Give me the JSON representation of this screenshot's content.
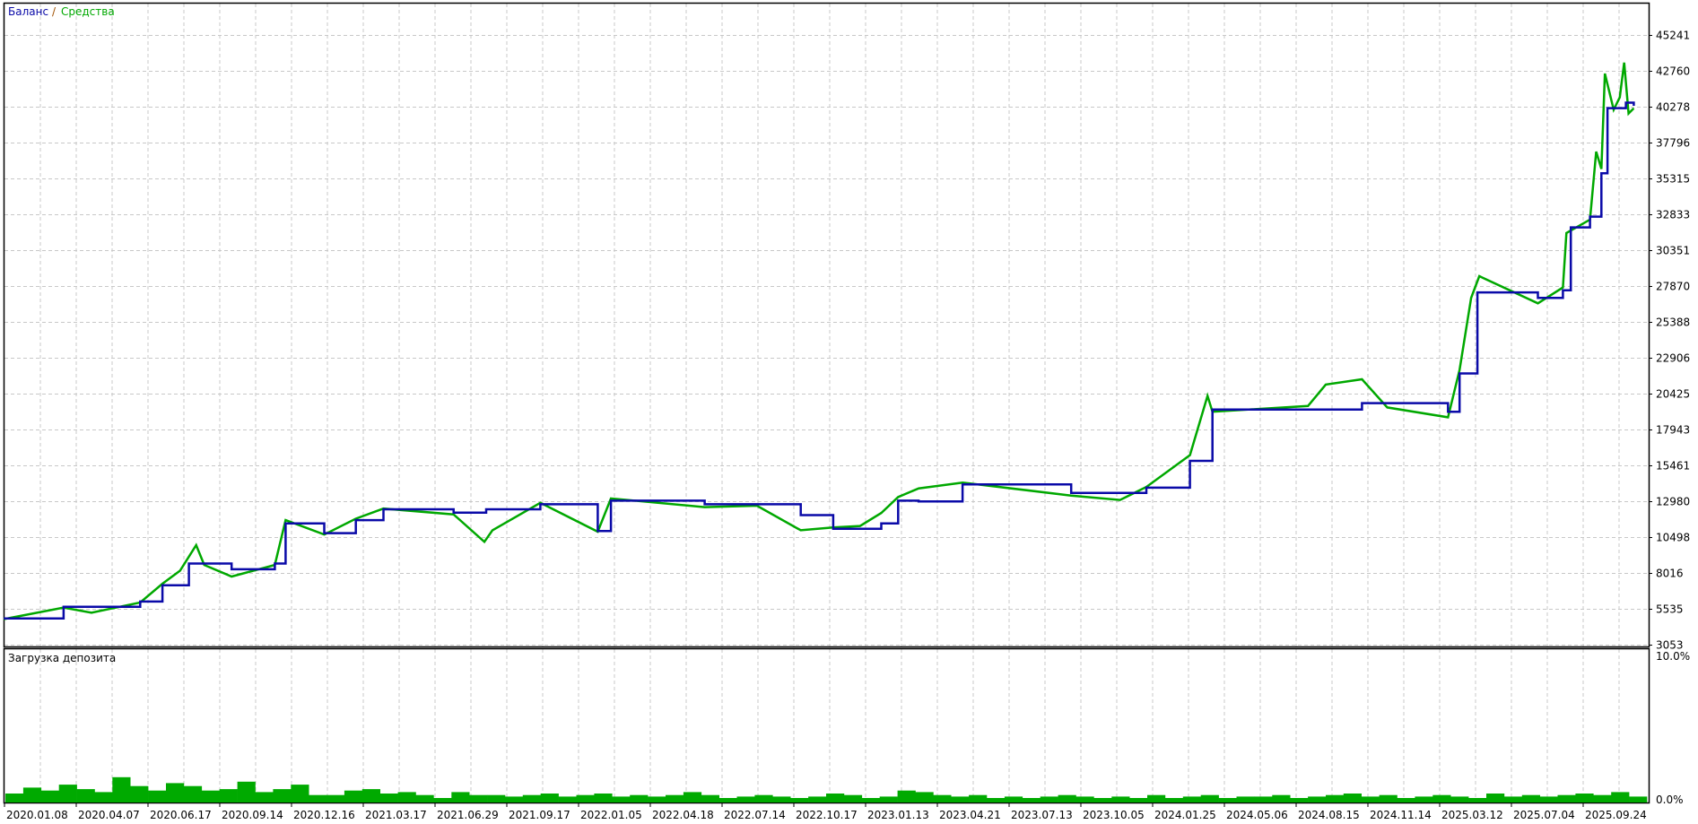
{
  "legend": {
    "balance": "Баланс",
    "separator": "/",
    "equity": "Средства"
  },
  "load_panel": {
    "title": "Загрузка депозита"
  },
  "colors": {
    "balance": "#0a0aa8",
    "equity": "#00a800",
    "load": "#00aa00",
    "grid": "#c8c8c8",
    "frame": "#000000"
  },
  "chart_data": [
    {
      "type": "line",
      "title": "",
      "legend": [
        "Баланс",
        "Средства"
      ],
      "legend_placement": "top-left",
      "grid": true,
      "y_ticks": [
        "45241",
        "42760",
        "40278",
        "37796",
        "35315",
        "32833",
        "30351",
        "27870",
        "25388",
        "22906",
        "20425",
        "17943",
        "15461",
        "12980",
        "10498",
        "8016",
        "5535",
        "3053"
      ],
      "ylim": [
        3053,
        47722
      ],
      "x_ticks": [
        "2020.01.08",
        "2020.04.07",
        "2020.06.17",
        "2020.09.14",
        "2020.12.16",
        "2021.03.17",
        "2021.06.29",
        "2021.09.17",
        "2022.01.05",
        "2022.04.18",
        "2022.07.14",
        "2022.10.17",
        "2023.01.13",
        "2023.04.21",
        "2023.07.13",
        "2023.10.05",
        "2024.01.25",
        "2024.05.06",
        "2024.08.15",
        "2024.11.14",
        "2025.03.12",
        "2025.07.04",
        "2025.09.24"
      ],
      "series": [
        {
          "name": "Баланс",
          "style": "step",
          "points": [
            [
              "2019.12.01",
              4900
            ],
            [
              "2020.02.14",
              5700
            ],
            [
              "2020.05.11",
              6070
            ],
            [
              "2020.06.02",
              7200
            ],
            [
              "2020.07.01",
              8700
            ],
            [
              "2020.08.23",
              8300
            ],
            [
              "2020.10.17",
              8700
            ],
            [
              "2020.10.31",
              11470
            ],
            [
              "2020.12.20",
              10800
            ],
            [
              "2021.01.29",
              11700
            ],
            [
              "2021.03.05",
              12450
            ],
            [
              "2021.06.13",
              12220
            ],
            [
              "2021.07.23",
              12450
            ],
            [
              "2021.09.23",
              12800
            ],
            [
              "2021.12.20",
              10950
            ],
            [
              "2022.01.09",
              13050
            ],
            [
              "2022.05.18",
              12800
            ],
            [
              "2022.07.21",
              12800
            ],
            [
              "2022.09.17",
              12050
            ],
            [
              "2022.10.29",
              11100
            ],
            [
              "2022.12.27",
              11470
            ],
            [
              "2023.01.17",
              13050
            ],
            [
              "2023.02.14",
              13000
            ],
            [
              "2023.04.15",
              14180
            ],
            [
              "2023.08.20",
              13580
            ],
            [
              "2023.11.30",
              13950
            ],
            [
              "2024.02.05",
              15800
            ],
            [
              "2024.03.08",
              19350
            ],
            [
              "2024.07.21",
              19350
            ],
            [
              "2024.09.30",
              19800
            ],
            [
              "2025.02.05",
              19200
            ],
            [
              "2025.02.24",
              21850
            ],
            [
              "2025.03.25",
              27460
            ],
            [
              "2025.06.29",
              27080
            ],
            [
              "2025.07.29",
              27600
            ],
            [
              "2025.08.07",
              31960
            ],
            [
              "2025.08.29",
              32700
            ],
            [
              "2025.09.11",
              35700
            ],
            [
              "2025.09.18",
              40210
            ],
            [
              "2025.10.09",
              40590
            ],
            [
              "2025.10.18",
              40370
            ]
          ]
        },
        {
          "name": "Средства",
          "style": "line",
          "points": [
            [
              "2019.12.01",
              4850
            ],
            [
              "2020.02.14",
              5650
            ],
            [
              "2020.03.20",
              5300
            ],
            [
              "2020.05.11",
              6000
            ],
            [
              "2020.06.02",
              7300
            ],
            [
              "2020.06.20",
              8200
            ],
            [
              "2020.07.10",
              9970
            ],
            [
              "2020.07.20",
              8600
            ],
            [
              "2020.08.23",
              7800
            ],
            [
              "2020.10.17",
              8600
            ],
            [
              "2020.10.31",
              11700
            ],
            [
              "2020.12.20",
              10700
            ],
            [
              "2021.01.29",
              11800
            ],
            [
              "2021.03.05",
              12500
            ],
            [
              "2021.06.13",
              12100
            ],
            [
              "2021.07.21",
              10200
            ],
            [
              "2021.07.30",
              11000
            ],
            [
              "2021.09.23",
              12900
            ],
            [
              "2021.12.20",
              10900
            ],
            [
              "2022.01.09",
              13200
            ],
            [
              "2022.05.18",
              12600
            ],
            [
              "2022.07.21",
              12700
            ],
            [
              "2022.09.17",
              11000
            ],
            [
              "2022.10.29",
              11200
            ],
            [
              "2022.12.01",
              11300
            ],
            [
              "2022.12.27",
              12200
            ],
            [
              "2023.01.17",
              13300
            ],
            [
              "2023.02.14",
              13900
            ],
            [
              "2023.04.15",
              14300
            ],
            [
              "2023.08.20",
              13400
            ],
            [
              "2023.10.20",
              13100
            ],
            [
              "2023.11.30",
              14000
            ],
            [
              "2024.02.05",
              16200
            ],
            [
              "2024.03.01",
              20300
            ],
            [
              "2024.03.08",
              19200
            ],
            [
              "2024.07.21",
              19600
            ],
            [
              "2024.08.15",
              21080
            ],
            [
              "2024.09.30",
              21450
            ],
            [
              "2024.11.01",
              19500
            ],
            [
              "2025.02.05",
              18820
            ],
            [
              "2025.02.24",
              22100
            ],
            [
              "2025.03.15",
              27080
            ],
            [
              "2025.03.28",
              28580
            ],
            [
              "2025.06.29",
              26700
            ],
            [
              "2025.07.29",
              27800
            ],
            [
              "2025.08.02",
              31570
            ],
            [
              "2025.08.29",
              32500
            ],
            [
              "2025.09.05",
              37200
            ],
            [
              "2025.09.11",
              36000
            ],
            [
              "2025.09.15",
              42600
            ],
            [
              "2025.09.25",
              40100
            ],
            [
              "2025.10.02",
              40960
            ],
            [
              "2025.10.07",
              43360
            ],
            [
              "2025.10.12",
              39840
            ],
            [
              "2025.10.18",
              40200
            ]
          ]
        }
      ]
    },
    {
      "type": "bar",
      "title": "Загрузка депозита",
      "y_ticks": [
        "10.0%",
        "0.0%"
      ],
      "ylim": [
        0,
        10
      ],
      "unit": "%",
      "values": [
        0.6,
        1.0,
        0.8,
        1.2,
        0.9,
        0.7,
        1.7,
        1.1,
        0.8,
        1.3,
        1.1,
        0.8,
        0.9,
        1.4,
        0.7,
        0.9,
        1.2,
        0.5,
        0.5,
        0.8,
        0.9,
        0.6,
        0.7,
        0.5,
        0.3,
        0.7,
        0.5,
        0.5,
        0.4,
        0.5,
        0.6,
        0.4,
        0.5,
        0.6,
        0.4,
        0.5,
        0.4,
        0.5,
        0.7,
        0.5,
        0.3,
        0.4,
        0.5,
        0.4,
        0.3,
        0.4,
        0.6,
        0.5,
        0.3,
        0.4,
        0.8,
        0.7,
        0.5,
        0.4,
        0.5,
        0.3,
        0.4,
        0.3,
        0.4,
        0.5,
        0.4,
        0.3,
        0.4,
        0.3,
        0.5,
        0.3,
        0.4,
        0.5,
        0.3,
        0.4,
        0.4,
        0.5,
        0.3,
        0.4,
        0.5,
        0.6,
        0.4,
        0.5,
        0.3,
        0.4,
        0.5,
        0.4,
        0.3,
        0.6,
        0.4,
        0.5,
        0.4,
        0.5,
        0.6,
        0.5,
        0.7,
        0.4
      ]
    }
  ]
}
